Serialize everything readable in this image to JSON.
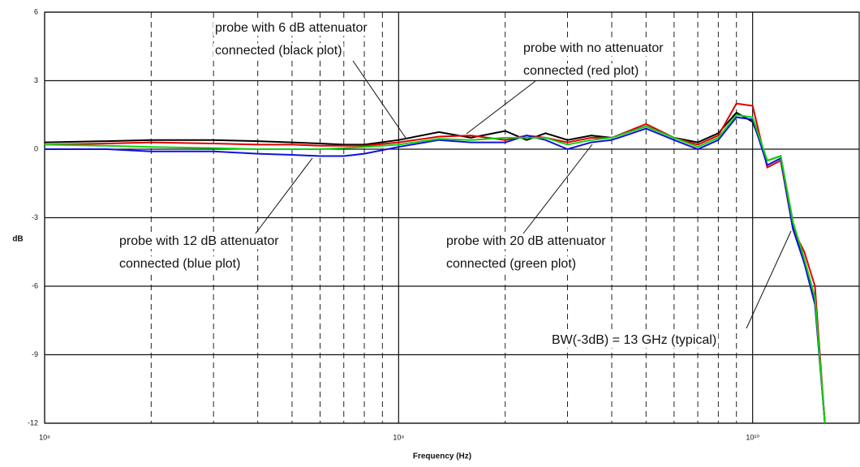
{
  "chart_data": {
    "type": "line",
    "xlabel": "Frequency (Hz)",
    "ylabel": "dB",
    "log_x": true,
    "xlim": [
      100000000,
      20000000000
    ],
    "ylim": [
      -12,
      6
    ],
    "xticks": [
      {
        "value": 100000000,
        "label": "10⁸"
      },
      {
        "value": 1000000000,
        "label": "10⁹"
      },
      {
        "value": 10000000000,
        "label": "10¹⁰"
      }
    ],
    "xminorticks": [
      200000000,
      300000000,
      400000000,
      500000000,
      600000000,
      700000000,
      800000000,
      900000000,
      2000000000,
      3000000000,
      4000000000,
      5000000000,
      6000000000,
      7000000000,
      8000000000,
      9000000000
    ],
    "yticks": [
      -12,
      -9,
      -6,
      -3,
      0,
      3,
      6
    ],
    "grid": true,
    "x": [
      100000000,
      150000000,
      200000000,
      300000000,
      400000000,
      500000000,
      600000000,
      700000000,
      800000000,
      1000000000,
      1300000000,
      1600000000,
      2000000000,
      2300000000,
      2600000000,
      3000000000,
      3500000000,
      4000000000,
      5000000000,
      6000000000,
      7000000000,
      8000000000,
      9000000000,
      10000000000,
      11000000000,
      12000000000,
      13000000000,
      14000000000,
      15000000000,
      16000000000
    ],
    "series": [
      {
        "name": "black",
        "color": "#000000",
        "values": [
          0.3,
          0.35,
          0.4,
          0.4,
          0.35,
          0.3,
          0.25,
          0.2,
          0.2,
          0.4,
          0.75,
          0.5,
          0.8,
          0.4,
          0.7,
          0.4,
          0.6,
          0.5,
          1.0,
          0.5,
          0.3,
          0.7,
          1.6,
          1.2,
          -0.5,
          -0.3,
          -3.2,
          -5,
          -6.5,
          -12
        ]
      },
      {
        "name": "red",
        "color": "#e00000",
        "values": [
          0.2,
          0.25,
          0.3,
          0.25,
          0.2,
          0.2,
          0.15,
          0.15,
          0.15,
          0.3,
          0.55,
          0.6,
          0.4,
          0.6,
          0.5,
          0.3,
          0.5,
          0.5,
          1.1,
          0.5,
          0.2,
          0.6,
          2.0,
          1.9,
          -0.8,
          -0.5,
          -3.5,
          -4.5,
          -6,
          -12
        ]
      },
      {
        "name": "blue",
        "color": "#1010e0",
        "values": [
          0,
          0,
          -0.1,
          -0.1,
          -0.2,
          -0.25,
          -0.3,
          -0.3,
          -0.2,
          0.1,
          0.4,
          0.3,
          0.3,
          0.6,
          0.4,
          0,
          0.3,
          0.4,
          0.9,
          0.4,
          0,
          0.4,
          1.4,
          1.3,
          -0.7,
          -0.4,
          -3.5,
          -5,
          -6.8,
          -12
        ]
      },
      {
        "name": "green",
        "color": "#10d010",
        "values": [
          0.2,
          0.15,
          0.1,
          0.05,
          0,
          0,
          0,
          0.05,
          0.1,
          0.2,
          0.45,
          0.4,
          0.5,
          0.5,
          0.5,
          0.2,
          0.4,
          0.5,
          1.0,
          0.5,
          0.1,
          0.5,
          1.5,
          1.4,
          -0.5,
          -0.3,
          -3.2,
          -4.8,
          -6.5,
          -12
        ]
      }
    ],
    "annotations": [
      {
        "text": [
          "probe with 6 dB attenuator",
          "connected (black plot)"
        ]
      },
      {
        "text": [
          "probe with no attenuator",
          "connected (red plot)"
        ]
      },
      {
        "text": [
          "probe with 12 dB attenuator",
          "connected (blue plot)"
        ]
      },
      {
        "text": [
          "probe with 20 dB attenuator",
          "connected (green plot)"
        ]
      },
      {
        "text": [
          "BW(-3dB) = 13 GHz (typical)"
        ]
      }
    ]
  }
}
